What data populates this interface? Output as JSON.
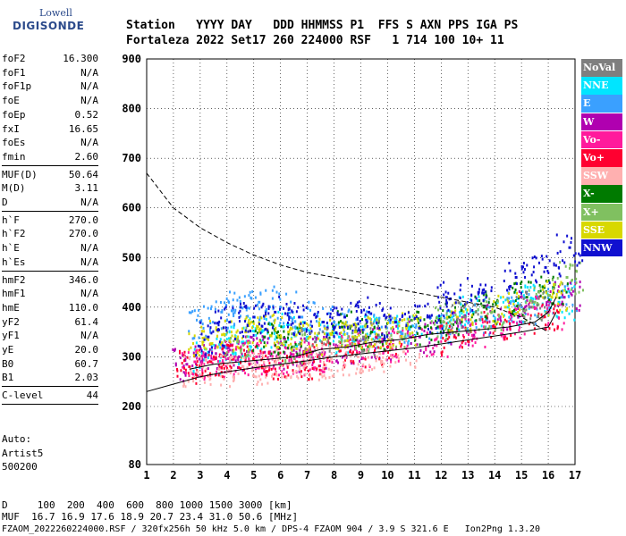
{
  "logo": {
    "line1": "Lowell",
    "line2": "DIGISONDE"
  },
  "header": {
    "labels": "Station   YYYY DAY   DDD HHMMSS P1  FFS S AXN PPS IGA PS",
    "values": "Fortaleza 2022 Set17 260 224000 RSF   1 714 100 10+ 11"
  },
  "params": {
    "group1": [
      {
        "k": "foF2",
        "v": "16.300"
      },
      {
        "k": "foF1",
        "v": "N/A"
      },
      {
        "k": "foF1p",
        "v": "N/A"
      },
      {
        "k": "foE",
        "v": "N/A"
      },
      {
        "k": "foEp",
        "v": "0.52"
      },
      {
        "k": "fxI",
        "v": "16.65"
      },
      {
        "k": "foEs",
        "v": "N/A"
      },
      {
        "k": "fmin",
        "v": "2.60"
      }
    ],
    "group2": [
      {
        "k": "MUF(D)",
        "v": "50.64"
      },
      {
        "k": "M(D)",
        "v": "3.11"
      },
      {
        "k": "D",
        "v": "N/A"
      }
    ],
    "group3": [
      {
        "k": "h`F",
        "v": "270.0"
      },
      {
        "k": "h`F2",
        "v": "270.0"
      },
      {
        "k": "h`E",
        "v": "N/A"
      },
      {
        "k": "h`Es",
        "v": "N/A"
      }
    ],
    "group4": [
      {
        "k": "hmF2",
        "v": "346.0"
      },
      {
        "k": "hmF1",
        "v": "N/A"
      },
      {
        "k": "hmE",
        "v": "110.0"
      },
      {
        "k": "yF2",
        "v": "61.4"
      },
      {
        "k": "yF1",
        "v": "N/A"
      },
      {
        "k": "yE",
        "v": "20.0"
      },
      {
        "k": "B0",
        "v": "60.7"
      },
      {
        "k": "B1",
        "v": "2.03"
      }
    ],
    "group5": [
      {
        "k": "C-level",
        "v": "44"
      }
    ]
  },
  "auto": {
    "line1": "Auto:",
    "line2": "Artist5",
    "line3": "500200"
  },
  "legend": [
    {
      "label": "NoVal",
      "color": "#7f7f7f"
    },
    {
      "label": "NNE",
      "color": "#00e5ff"
    },
    {
      "label": "E",
      "color": "#3aa0ff"
    },
    {
      "label": "W",
      "color": "#b000b0"
    },
    {
      "label": "Vo-",
      "color": "#ff1a9c"
    },
    {
      "label": "Vo+",
      "color": "#ff0030"
    },
    {
      "label": "SSW",
      "color": "#ffb0b0"
    },
    {
      "label": "X-",
      "color": "#007a00"
    },
    {
      "label": "X+",
      "color": "#80c060"
    },
    {
      "label": "SSE",
      "color": "#d8d800"
    },
    {
      "label": "NNW",
      "color": "#1010d0"
    }
  ],
  "distance": {
    "line1": "D     100  200  400  600  800 1000 1500 3000 [km]",
    "line2": "MUF  16.7 16.9 17.6 18.9 20.7 23.4 31.0 50.6 [MHz]"
  },
  "footer": "FZAOM_2022260224000.RSF / 320fx256h 50 kHz 5.0 km / DPS-4 FZAOM 904 / 3.9 S 321.6 E   Ion2Png 1.3.20",
  "chart_data": {
    "type": "scatter",
    "xlim": [
      1,
      17
    ],
    "ylim": [
      80,
      900
    ],
    "xticks": [
      "1",
      "2",
      "3",
      "4",
      "5",
      "6",
      "7",
      "8",
      "9",
      "10",
      "11",
      "12",
      "13",
      "14",
      "15",
      "16",
      "17"
    ],
    "yticks": [
      "80",
      "200",
      "300",
      "400",
      "500",
      "600",
      "700",
      "800",
      "900"
    ],
    "grid": true,
    "series": [
      {
        "name": "NNE",
        "color": "#00e5ff",
        "x": [
          3.2,
          4.0,
          4.6,
          5.3,
          6.1,
          7.0,
          8.2,
          9.5,
          10.8,
          12.4,
          13.2,
          14.5,
          15.6,
          16.4
        ],
        "y": [
          300,
          320,
          330,
          350,
          360,
          340,
          340,
          350,
          360,
          380,
          390,
          400,
          420,
          410
        ]
      },
      {
        "name": "E",
        "color": "#3aa0ff",
        "x": [
          3.0,
          3.8,
          4.5,
          5.2,
          6.0,
          6.8,
          8.0,
          9.2,
          10.5,
          12.0,
          13.5,
          15.0,
          16.5
        ],
        "y": [
          370,
          390,
          400,
          410,
          400,
          380,
          370,
          360,
          350,
          360,
          380,
          400,
          420
        ]
      },
      {
        "name": "W",
        "color": "#b000b0",
        "x": [
          2.5,
          3.2,
          4.0,
          4.8,
          5.6,
          6.4,
          7.2,
          8.5,
          9.8,
          11.2,
          12.8,
          14.2,
          15.4,
          16.6
        ],
        "y": [
          285,
          300,
          305,
          310,
          310,
          305,
          310,
          320,
          330,
          340,
          360,
          380,
          400,
          420
        ]
      },
      {
        "name": "Vo-",
        "color": "#ff1a9c",
        "x": [
          2.8,
          3.5,
          4.3,
          5.1,
          5.9,
          6.7,
          7.5,
          8.8,
          10.2,
          11.8,
          13.1,
          14.7,
          16.0
        ],
        "y": [
          290,
          295,
          300,
          300,
          300,
          300,
          305,
          315,
          325,
          335,
          350,
          370,
          390
        ]
      },
      {
        "name": "Vo+",
        "color": "#ff0030",
        "x": [
          2.6,
          3.4,
          4.2,
          5.0,
          5.8,
          6.6,
          7.4,
          8.6,
          10.0,
          12.5,
          14.0,
          15.8
        ],
        "y": [
          280,
          290,
          295,
          295,
          290,
          290,
          300,
          310,
          320,
          340,
          360,
          380
        ]
      },
      {
        "name": "SSW",
        "color": "#ffb0b0",
        "x": [
          2.9,
          3.7,
          4.6,
          5.5,
          6.3,
          7.1,
          7.9,
          8.9,
          9.6,
          10.6
        ],
        "y": [
          270,
          275,
          280,
          280,
          285,
          290,
          295,
          300,
          300,
          310
        ]
      },
      {
        "name": "X-",
        "color": "#007a00",
        "x": [
          5.4,
          6.2,
          8.3,
          9.4,
          11.4,
          12.3,
          13.6,
          15.2,
          16.2
        ],
        "y": [
          340,
          330,
          360,
          350,
          360,
          380,
          400,
          420,
          440
        ]
      },
      {
        "name": "X+",
        "color": "#80c060",
        "x": [
          4.4,
          6.5,
          8.7,
          10.4,
          12.1,
          13.9,
          15.5,
          16.7
        ],
        "y": [
          330,
          320,
          340,
          350,
          370,
          390,
          410,
          460
        ]
      },
      {
        "name": "SSE",
        "color": "#d8d800",
        "x": [
          3.1,
          3.9,
          4.7,
          5.5,
          6.3,
          7.1,
          7.9,
          8.8,
          9.7,
          10.7,
          12.6,
          14.4,
          16.3
        ],
        "y": [
          330,
          345,
          350,
          355,
          350,
          340,
          345,
          350,
          355,
          360,
          380,
          400,
          420
        ]
      },
      {
        "name": "NNW",
        "color": "#1010d0",
        "x": [
          3.3,
          4.1,
          5.0,
          5.8,
          6.7,
          7.6,
          8.4,
          9.3,
          10.3,
          11.5,
          12.2,
          13.4,
          14.8,
          15.9,
          16.8
        ],
        "y": [
          340,
          370,
          380,
          390,
          380,
          370,
          380,
          390,
          370,
          380,
          420,
          430,
          460,
          480,
          520
        ]
      },
      {
        "name": "NoVal",
        "color": "#7f7f7f",
        "x": [
          7.3,
          9.1,
          12.9,
          15.3
        ],
        "y": [
          330,
          340,
          380,
          400
        ]
      }
    ],
    "curves": [
      {
        "name": "upper-dashed",
        "style": "dashed",
        "x": [
          1,
          2,
          3,
          4,
          5,
          6,
          7,
          8,
          9,
          10,
          11,
          12,
          13,
          14,
          15,
          16
        ],
        "y": [
          670,
          600,
          560,
          530,
          505,
          485,
          470,
          460,
          450,
          440,
          430,
          420,
          410,
          400,
          380,
          350
        ]
      },
      {
        "name": "lower-profile",
        "style": "solid",
        "x": [
          1,
          2,
          3,
          4,
          5,
          6,
          7,
          8,
          9,
          10,
          11,
          12,
          13,
          14,
          15,
          16,
          16.3
        ],
        "y": [
          230,
          245,
          260,
          270,
          278,
          285,
          292,
          300,
          306,
          312,
          318,
          326,
          334,
          342,
          350,
          360,
          390
        ]
      },
      {
        "name": "trace",
        "style": "solid",
        "x": [
          2.6,
          3.5,
          4.5,
          5.5,
          6.5,
          7.5,
          8.5,
          9.5,
          10.5,
          11.5,
          12.5,
          13.5,
          14.5,
          15.5,
          16.0,
          16.3
        ],
        "y": [
          275,
          285,
          290,
          295,
          300,
          315,
          320,
          330,
          335,
          345,
          350,
          355,
          360,
          370,
          390,
          420
        ]
      }
    ]
  }
}
